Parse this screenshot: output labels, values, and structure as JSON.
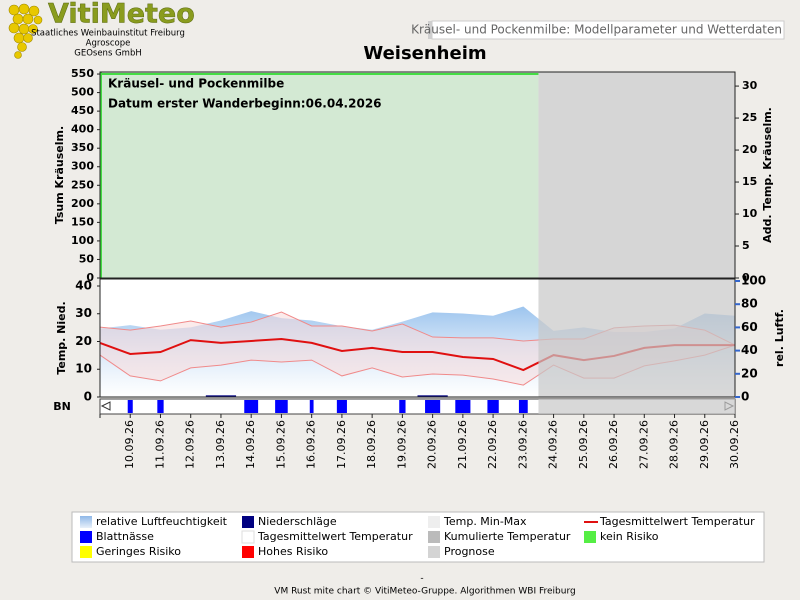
{
  "header": {
    "logo": "VitiMeteo",
    "institute": "Staatliches Weinbauinstitut Freiburg",
    "partner1": "Agroscope",
    "partner2": "GEOsens GmbH",
    "banner": "Kräusel- und Pockenmilbe: Modellparameter und Wetterdaten",
    "title": "Weisenheim"
  },
  "chart_data": [
    {
      "type": "area",
      "annotations": [
        "Kräusel- und Pockenmilbe",
        "Datum  erster Wanderbeginn:06.04.2026"
      ],
      "ylabel": "Tsum Kräuselm.",
      "y2label": "Add. Temp. Kräuselm.",
      "ylim": [
        0,
        555.5
      ],
      "yticks": [
        0,
        50,
        100,
        150,
        200,
        250,
        300,
        350,
        400,
        450,
        500,
        550
      ],
      "y2lim": [
        0,
        32.2
      ],
      "y2ticks": [
        0,
        5,
        10,
        15,
        20,
        25,
        30
      ],
      "risk_color": "#d3e9d3",
      "risk_line_color": "#44dd44"
    },
    {
      "type": "line",
      "ylabel": "Temp. Nied.",
      "y2label": "rel. Luftf.",
      "row_label": "BN",
      "categories": [
        null,
        "10.09.26",
        "11.09.26",
        "12.09.26",
        "13.09.26",
        "14.09.26",
        "15.09.26",
        "16.09.26",
        "17.09.26",
        "18.09.26",
        "19.09.26",
        "20.09.26",
        "21.09.26",
        "22.09.26",
        "23.09.26",
        "24.09.26",
        "25.09.26",
        "26.09.26",
        "27.09.26",
        "28.09.26",
        "29.09.26",
        "30.09.26"
      ],
      "forecast_start": "24.09.26",
      "forecast_color": "#c8c8c8",
      "ylim": [
        0,
        41.8
      ],
      "yticks": [
        0,
        10,
        20,
        30,
        40
      ],
      "y2lim": [
        0,
        100
      ],
      "y2ticks": [
        0,
        20,
        40,
        60,
        80,
        100
      ],
      "humidity": {
        "axis": "y2",
        "color": "#9cc4ee",
        "values": [
          59,
          62,
          58,
          60,
          66,
          74,
          68,
          66,
          61,
          58,
          65,
          73,
          72,
          70,
          78,
          57,
          60,
          56,
          56,
          59,
          72,
          70
        ]
      },
      "temp_range": {
        "color": "#f08a8a",
        "fill": "#f7dada",
        "high": [
          25.2,
          24.1,
          25.6,
          27.4,
          25.2,
          27.0,
          30.6,
          25.6,
          25.6,
          23.8,
          26.3,
          21.6,
          21.3,
          21.3,
          20.2,
          20.9,
          20.9,
          24.9,
          25.6,
          25.9,
          24.1,
          18.7
        ],
        "low": [
          15.1,
          7.6,
          5.8,
          10.5,
          11.5,
          13.3,
          12.6,
          13.3,
          7.6,
          10.5,
          7.2,
          8.3,
          7.9,
          6.5,
          4.3,
          11.5,
          6.8,
          6.8,
          11.2,
          13.0,
          15.1,
          18.7
        ]
      },
      "temp_mean": {
        "color": "#e01010",
        "values": [
          19.5,
          15.5,
          16.2,
          20.5,
          19.5,
          20.2,
          20.9,
          19.5,
          16.6,
          17.7,
          16.2,
          16.2,
          14.4,
          13.7,
          9.7,
          15.1,
          13.3,
          14.8,
          17.7,
          18.7,
          18.7,
          18.7
        ]
      },
      "precipitation": {
        "color": "#000080",
        "values": [
          0,
          0,
          0,
          0,
          0.6,
          0,
          0,
          0,
          0,
          0,
          0,
          0.6,
          0,
          0,
          0,
          0,
          0,
          0,
          0,
          0,
          0,
          0
        ]
      },
      "leaf_wetness": {
        "color": "#0000ff",
        "max": 24,
        "values": [
          0,
          4,
          5,
          0,
          0,
          11,
          10,
          3,
          8,
          0,
          5,
          12,
          12,
          9,
          7,
          0,
          0,
          0,
          0,
          0,
          0,
          0
        ]
      }
    }
  ],
  "legend": [
    {
      "label": "relative Luftfeuchtigkeit",
      "color": "#9cc4ee",
      "style": "gradient"
    },
    {
      "label": "Niederschläge",
      "color": "#000080",
      "style": "box"
    },
    {
      "label": "Temp. Min-Max",
      "color": "#eeeeee",
      "style": "box"
    },
    {
      "label": "Tagesmittelwert Temperatur",
      "color": "#e01010",
      "style": "line"
    },
    {
      "label": "Blattnässe",
      "color": "#0000ff",
      "style": "box"
    },
    {
      "label": "Tagesmittelwert Temperatur",
      "color": "#ffffff",
      "style": "box"
    },
    {
      "label": "Kumulierte Temperatur",
      "color": "#bbbbbb",
      "style": "box"
    },
    {
      "label": "kein Risiko",
      "color": "#55ee44",
      "style": "box"
    },
    {
      "label": "Geringes Risiko",
      "color": "#ffff00",
      "style": "box"
    },
    {
      "label": "Hohes Risiko",
      "color": "#ff0000",
      "style": "box"
    },
    {
      "label": "Prognose",
      "color": "#d4d4d4",
      "style": "box"
    }
  ],
  "footer": {
    "dash": "-",
    "credit": "VM Rust mite chart © VitiMeteo-Gruppe. Algorithmen WBI Freiburg"
  }
}
